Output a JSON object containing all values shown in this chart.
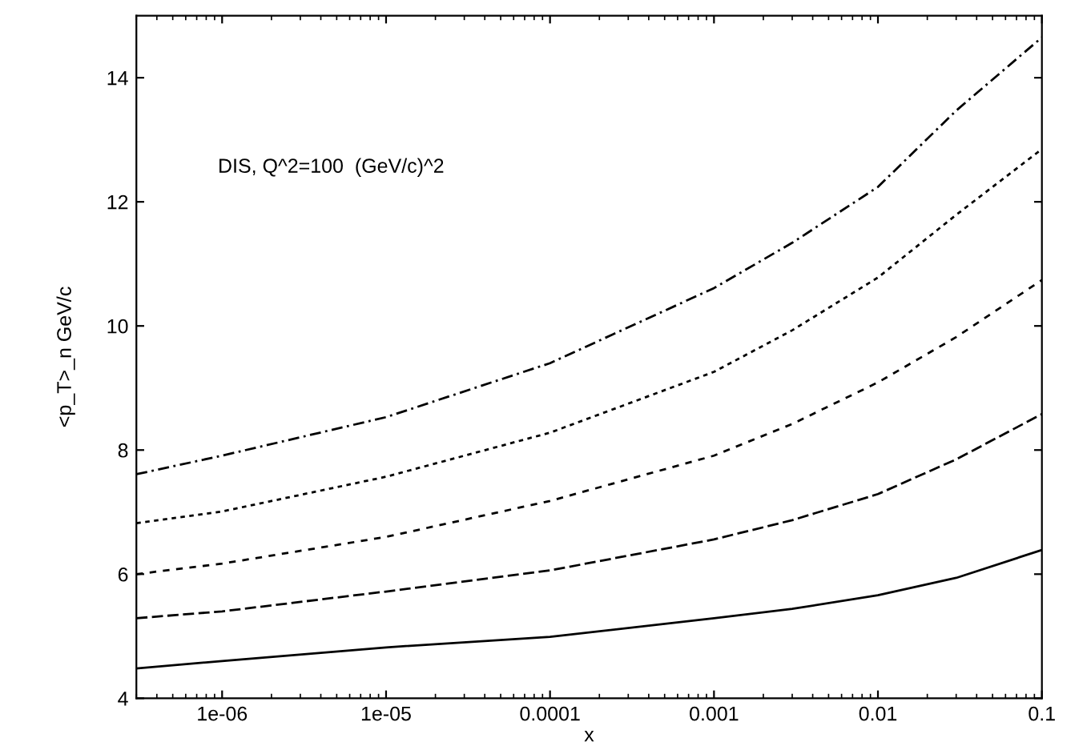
{
  "chart_data": {
    "type": "line",
    "xlabel": "x",
    "ylabel": "<p_T>_n GeV/c",
    "annotations": [
      "DIS, Q^2=100  (GeV/c)^2"
    ],
    "log": "x",
    "grid": false,
    "legend": false,
    "marker": "none",
    "x": [
      3e-07,
      1e-06,
      1e-05,
      0.0001,
      0.001,
      0.003,
      0.01,
      0.03,
      0.1
    ],
    "xlim": [
      3e-07,
      0.1
    ],
    "ylim": [
      4,
      15
    ],
    "xticks": [
      {
        "value": 1e-06,
        "label": "1e-06"
      },
      {
        "value": 1e-05,
        "label": "1e-05"
      },
      {
        "value": 0.0001,
        "label": "0.0001"
      },
      {
        "value": 0.001,
        "label": "0.001"
      },
      {
        "value": 0.01,
        "label": "0.01"
      },
      {
        "value": 0.1,
        "label": "0.1"
      }
    ],
    "yticks": [
      4,
      6,
      8,
      10,
      12,
      14
    ],
    "series": [
      {
        "color": "#000000",
        "line_style": "dashdot",
        "values": [
          7.61,
          7.91,
          8.53,
          9.4,
          10.61,
          11.34,
          12.24,
          13.47,
          14.65
        ]
      },
      {
        "color": "#000000",
        "line_style": "dotted",
        "values": [
          6.82,
          7.01,
          7.57,
          8.28,
          9.26,
          9.93,
          10.78,
          11.79,
          12.85
        ]
      },
      {
        "color": "#000000",
        "line_style": "dotted",
        "values": [
          6.0,
          6.17,
          6.6,
          7.18,
          7.91,
          8.42,
          9.09,
          9.82,
          10.74
        ]
      },
      {
        "color": "#000000",
        "line_style": "dashed",
        "values": [
          5.29,
          5.4,
          5.72,
          6.06,
          6.56,
          6.87,
          7.29,
          7.85,
          8.58
        ]
      },
      {
        "color": "#000000",
        "line_style": "solid",
        "values": [
          4.48,
          4.6,
          4.82,
          4.99,
          5.29,
          5.44,
          5.66,
          5.94,
          6.39
        ]
      }
    ]
  }
}
